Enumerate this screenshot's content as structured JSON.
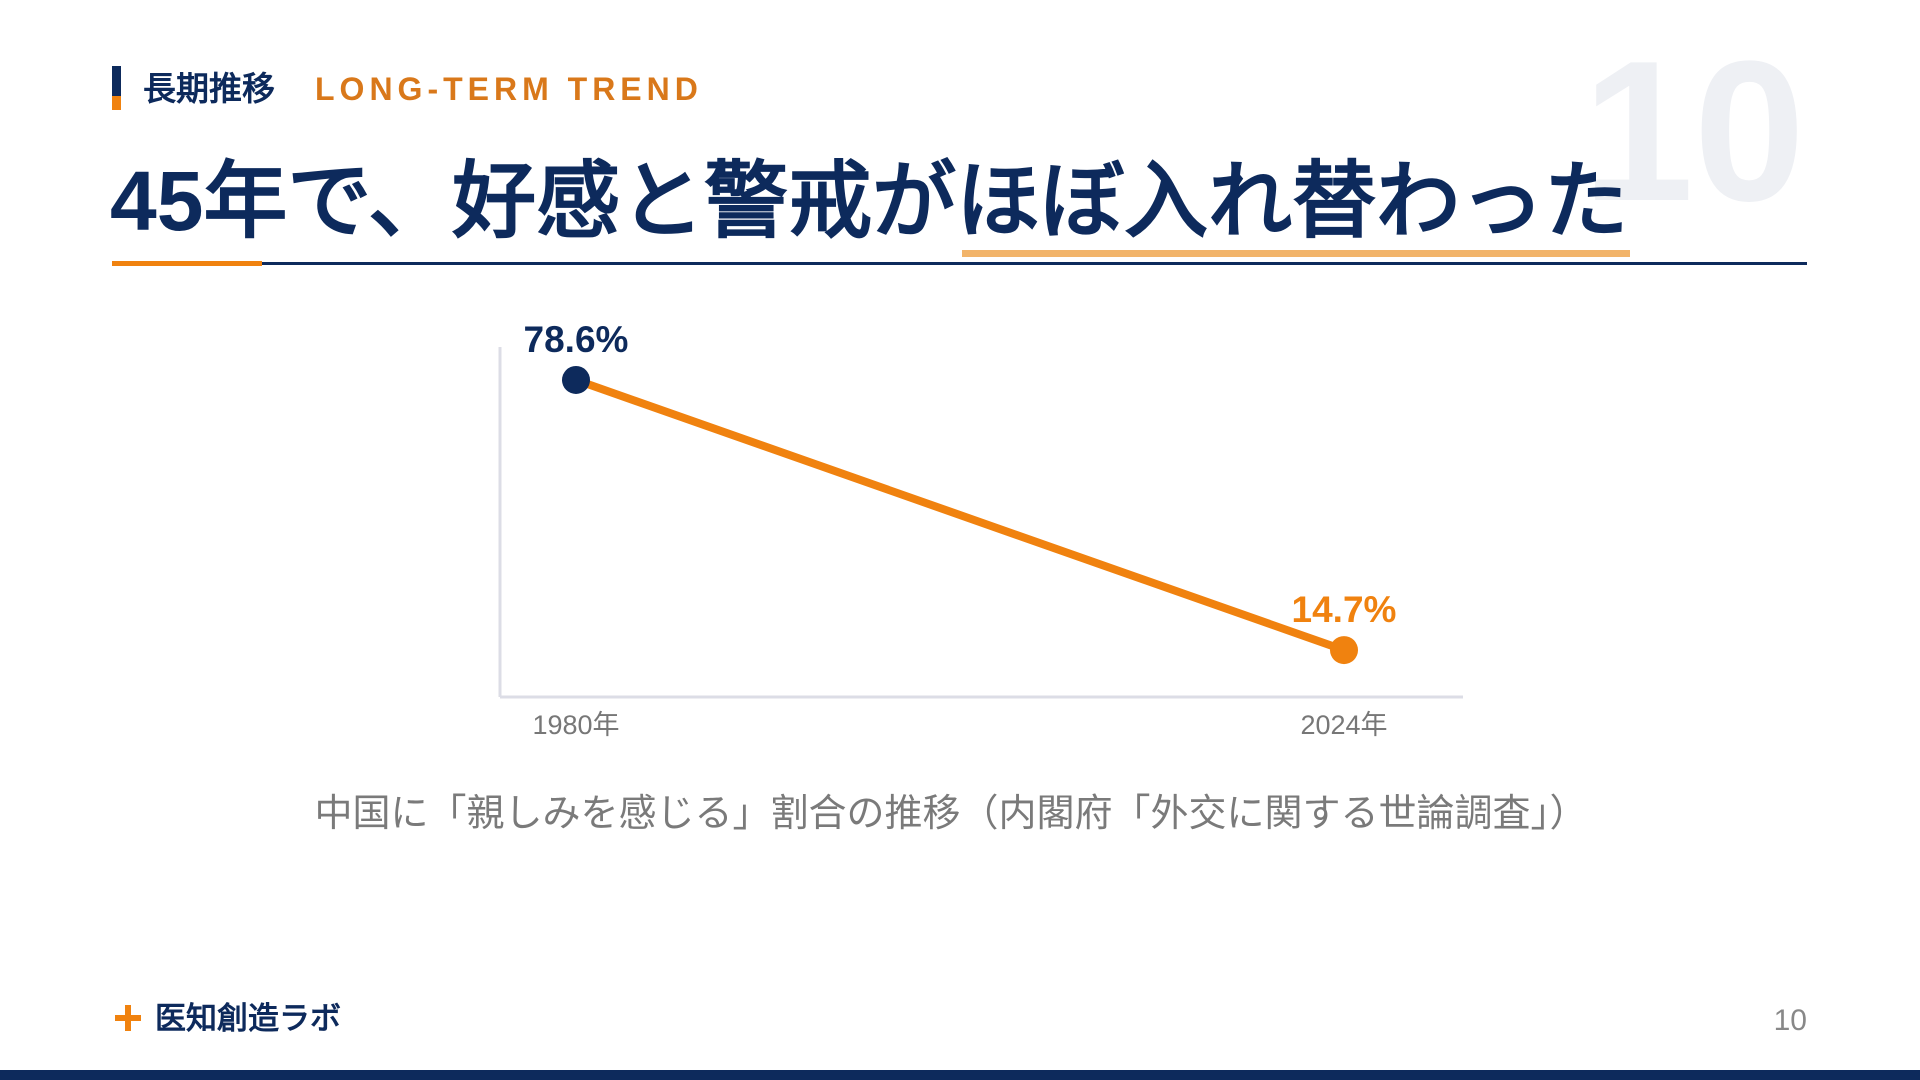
{
  "header": {
    "label_ja": "長期推移",
    "label_en": "LONG-TERM TREND",
    "title": "45年で、好感と警戒がほぼ入れ替わった",
    "watermark": "10"
  },
  "chart_data": {
    "type": "line",
    "categories": [
      "1980年",
      "2024年"
    ],
    "values": [
      78.6,
      14.7
    ],
    "value_labels": [
      "78.6%",
      "14.7%"
    ],
    "color": "#f0820f",
    "point_colors": [
      "#0d2a5c",
      "#f0820f"
    ],
    "ylim": [
      3.6,
      86.4
    ],
    "caption": "中国に「親しみを感じる」割合の推移（内閣府「外交に関する世論調査」）"
  },
  "footer": {
    "brand": "医知創造ラボ",
    "page_number": "10"
  }
}
